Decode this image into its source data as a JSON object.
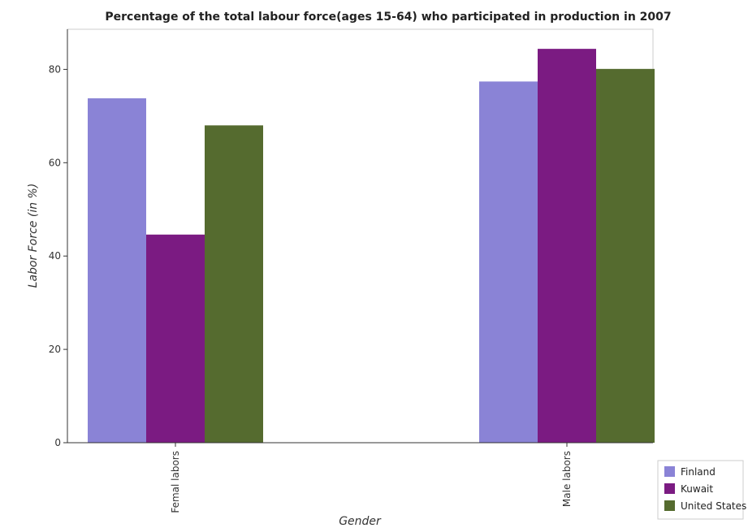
{
  "chart_data": {
    "type": "bar",
    "title": "Percentage of the total labour force(ages 15-64) who participated in production in 2007",
    "xlabel": "Gender",
    "ylabel": "Labor Force (in %)",
    "categories": [
      "Femal labors",
      "Male labors"
    ],
    "series": [
      {
        "name": "Finland",
        "color": "#8a83d6",
        "values": [
          73.8,
          77.4
        ]
      },
      {
        "name": "Kuwait",
        "color": "#7b1b82",
        "values": [
          44.6,
          84.4
        ]
      },
      {
        "name": "United States",
        "color": "#556b2f",
        "values": [
          68.0,
          80.1
        ]
      }
    ],
    "y_ticks": [
      0,
      20,
      40,
      60,
      80
    ],
    "ylim": [
      0,
      88.6
    ],
    "grid": false,
    "legend_position": "bottom-right"
  }
}
